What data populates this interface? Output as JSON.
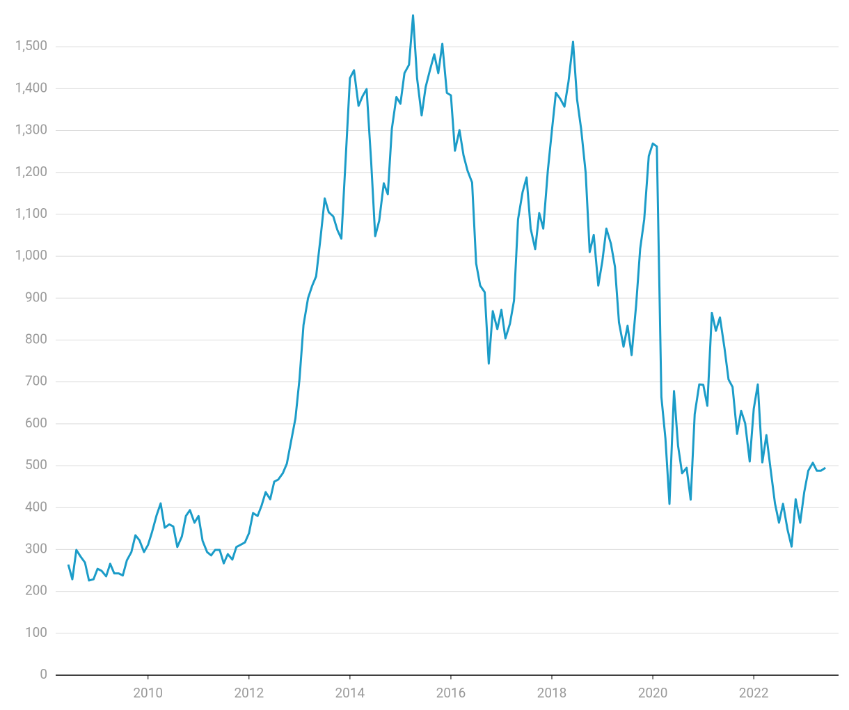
{
  "chart_data": {
    "type": "line",
    "color": "#1b9cc8",
    "grid": true,
    "x": [
      2008.42,
      2008.5,
      2008.58,
      2008.67,
      2008.75,
      2008.83,
      2008.92,
      2009.0,
      2009.08,
      2009.17,
      2009.25,
      2009.33,
      2009.42,
      2009.5,
      2009.58,
      2009.67,
      2009.75,
      2009.83,
      2009.92,
      2010.0,
      2010.08,
      2010.17,
      2010.25,
      2010.33,
      2010.42,
      2010.5,
      2010.58,
      2010.67,
      2010.75,
      2010.83,
      2010.92,
      2011.0,
      2011.08,
      2011.17,
      2011.25,
      2011.33,
      2011.42,
      2011.5,
      2011.58,
      2011.67,
      2011.75,
      2011.83,
      2011.92,
      2012.0,
      2012.08,
      2012.17,
      2012.25,
      2012.33,
      2012.42,
      2012.5,
      2012.58,
      2012.67,
      2012.75,
      2012.83,
      2012.92,
      2013.0,
      2013.08,
      2013.17,
      2013.25,
      2013.33,
      2013.42,
      2013.5,
      2013.58,
      2013.67,
      2013.75,
      2013.83,
      2013.92,
      2014.0,
      2014.08,
      2014.17,
      2014.25,
      2014.33,
      2014.42,
      2014.5,
      2014.58,
      2014.67,
      2014.75,
      2014.83,
      2014.92,
      2015.0,
      2015.08,
      2015.17,
      2015.25,
      2015.33,
      2015.42,
      2015.5,
      2015.58,
      2015.67,
      2015.75,
      2015.83,
      2015.92,
      2016.0,
      2016.08,
      2016.17,
      2016.25,
      2016.33,
      2016.42,
      2016.5,
      2016.58,
      2016.67,
      2016.75,
      2016.83,
      2016.92,
      2017.0,
      2017.08,
      2017.17,
      2017.25,
      2017.33,
      2017.42,
      2017.5,
      2017.58,
      2017.67,
      2017.75,
      2017.83,
      2017.92,
      2018.0,
      2018.08,
      2018.17,
      2018.25,
      2018.33,
      2018.42,
      2018.5,
      2018.58,
      2018.67,
      2018.75,
      2018.83,
      2018.92,
      2019.0,
      2019.08,
      2019.17,
      2019.25,
      2019.33,
      2019.42,
      2019.5,
      2019.58,
      2019.67,
      2019.75,
      2019.83,
      2019.92,
      2020.0,
      2020.08,
      2020.17,
      2020.25,
      2020.33,
      2020.42,
      2020.5,
      2020.58,
      2020.67,
      2020.75,
      2020.83,
      2020.92,
      2021.0,
      2021.08,
      2021.17,
      2021.25,
      2021.33,
      2021.42,
      2021.5,
      2021.58,
      2021.67,
      2021.75,
      2021.83,
      2021.92,
      2022.0,
      2022.08,
      2022.17,
      2022.25,
      2022.33,
      2022.42,
      2022.5,
      2022.58,
      2022.67,
      2022.75,
      2022.83,
      2022.92,
      2023.0,
      2023.08,
      2023.17,
      2023.25,
      2023.33,
      2023.42
    ],
    "values": [
      264,
      229,
      299,
      282,
      269,
      226,
      229,
      254,
      249,
      236,
      266,
      243,
      243,
      238,
      274,
      294,
      334,
      322,
      294,
      311,
      342,
      382,
      410,
      352,
      360,
      355,
      306,
      331,
      380,
      394,
      364,
      380,
      321,
      294,
      286,
      299,
      299,
      267,
      289,
      276,
      306,
      311,
      317,
      339,
      387,
      380,
      405,
      437,
      420,
      462,
      467,
      482,
      505,
      556,
      613,
      706,
      836,
      900,
      929,
      952,
      1047,
      1138,
      1105,
      1095,
      1063,
      1042,
      1243,
      1425,
      1444,
      1359,
      1382,
      1399,
      1226,
      1048,
      1085,
      1174,
      1148,
      1304,
      1380,
      1364,
      1437,
      1457,
      1575,
      1425,
      1336,
      1404,
      1442,
      1482,
      1437,
      1507,
      1390,
      1384,
      1252,
      1301,
      1241,
      1204,
      1176,
      983,
      930,
      914,
      744,
      869,
      826,
      872,
      804,
      839,
      894,
      1088,
      1153,
      1188,
      1066,
      1017,
      1103,
      1066,
      1204,
      1299,
      1390,
      1375,
      1357,
      1417,
      1512,
      1374,
      1304,
      1199,
      1010,
      1051,
      930,
      988,
      1066,
      1030,
      975,
      842,
      784,
      834,
      764,
      884,
      1018,
      1088,
      1239,
      1269,
      1262,
      664,
      565,
      409,
      678,
      548,
      482,
      495,
      419,
      623,
      694,
      693,
      643,
      865,
      822,
      854,
      781,
      706,
      688,
      576,
      631,
      601,
      510,
      636,
      694,
      508,
      573,
      495,
      410,
      364,
      409,
      347,
      307,
      420,
      364,
      437,
      488,
      507,
      488,
      488,
      495
    ],
    "xlim": [
      2008.17,
      2023.68
    ],
    "xticks": [
      2010,
      2012,
      2014,
      2016,
      2018,
      2020,
      2022
    ],
    "ylim": [
      0,
      1590
    ],
    "yticks": [
      0,
      100,
      200,
      300,
      400,
      500,
      600,
      700,
      800,
      900,
      {
        "value": 1000,
        "label": "1,000"
      },
      {
        "value": 1100,
        "label": "1,100"
      },
      {
        "value": 1200,
        "label": "1,200"
      },
      {
        "value": 1300,
        "label": "1,300"
      },
      {
        "value": 1400,
        "label": "1,400"
      },
      {
        "value": 1500,
        "label": "1,500"
      }
    ]
  }
}
